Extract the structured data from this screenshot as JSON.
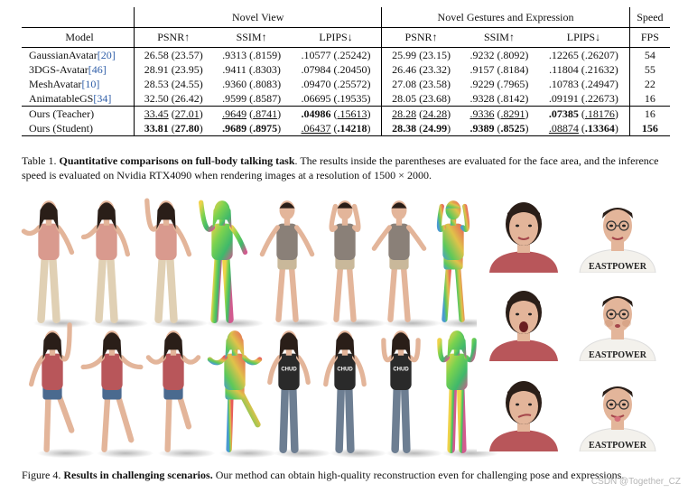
{
  "table": {
    "group_headers": [
      "Novel View",
      "Novel Gestures and Expression",
      "Speed"
    ],
    "column_headers": [
      "Model",
      "PSNR↑",
      "SSIM↑",
      "LPIPS↓",
      "PSNR↑",
      "SSIM↑",
      "LPIPS↓",
      "FPS"
    ],
    "rows": [
      {
        "model": "GaussianAvatar",
        "ref": "[20]",
        "cells": [
          "26.58 (23.57)",
          ".9313 (.8159)",
          ".10577 (.25242)",
          "25.99 (23.15)",
          ".9232 (.8092)",
          ".12265 (.26207)",
          "54"
        ]
      },
      {
        "model": "3DGS-Avatar",
        "ref": "[46]",
        "cells": [
          "28.91 (23.95)",
          ".9411 (.8303)",
          ".07984 (.20450)",
          "26.46 (23.32)",
          ".9157 (.8184)",
          ".11804 (.21632)",
          "55"
        ]
      },
      {
        "model": "MeshAvatar",
        "ref": "[10]",
        "cells": [
          "28.53 (24.55)",
          ".9360 (.8083)",
          ".09470 (.25572)",
          "27.08 (23.58)",
          ".9229 (.7965)",
          ".10783 (.24947)",
          "22"
        ]
      },
      {
        "model": "AnimatableGS",
        "ref": "[34]",
        "cells": [
          "32.50 (26.42)",
          ".9599 (.8587)",
          ".06695 (.19535)",
          "28.05 (23.68)",
          ".9328 (.8142)",
          ".09191 (.22673)",
          "16"
        ]
      },
      {
        "model": "Ours (Teacher)",
        "ref": "",
        "cells": [
          "33.45 (27.01)",
          ".9649 (.8741)",
          ".04986 (.15613)",
          "28.28 (24.28)",
          ".9336 (.8291)",
          ".07385 (.18176)",
          "16"
        ]
      },
      {
        "model": "Ours (Student)",
        "ref": "",
        "cells": [
          "33.81 (27.80)",
          ".9689 (.8975)",
          ".06437 (.14218)",
          "28.38 (24.99)",
          ".9389 (.8525)",
          ".08874 (.13364)",
          "156"
        ]
      }
    ]
  },
  "table_caption": {
    "label": "Table 1.",
    "bold": "Quantitative comparisons on full-body talking task",
    "text": ". The results inside the parentheses are evaluated for the face area, and the inference speed is evaluated on Nvidia RTX4090 when rendering images at a resolution of 1500 × 2000."
  },
  "figure_caption": {
    "label": "Figure 4.",
    "bold": "Results in challenging scenarios.",
    "text": " Our method can obtain high-quality reconstruction even for challenging pose and expressions."
  },
  "shirt_text": "EASTPOWER",
  "top_text": "CHUD",
  "watermark": "CSDN @Together_CZ",
  "colors": {
    "link": "#2f5ea8",
    "skin": "#e3b59a",
    "skin_dark": "#c98f6f",
    "hair": "#2a1e18",
    "pink_top": "#d99a8e",
    "beige_pants": "#e0d0b4",
    "red_shirt": "#b8565a",
    "denim": "#4a6a8f",
    "plaid": "#8a8078",
    "khaki": "#c9b89a",
    "jeans": "#6d7e92",
    "black_top": "#2a2a2a"
  }
}
